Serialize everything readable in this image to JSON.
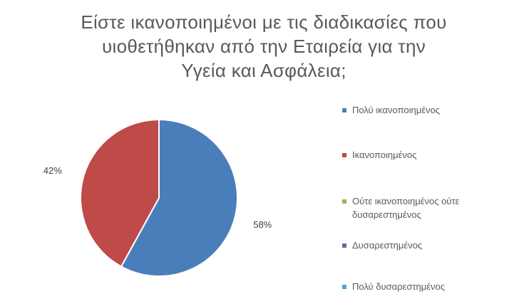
{
  "chart_data": {
    "type": "pie",
    "title_lines": [
      "Είστε ικανοποιημένοι με τις διαδικασίες που",
      "υιοθετήθηκαν από την Εταιρεία για την",
      "Υγεία και Ασφάλεια;"
    ],
    "categories": [
      "Πολύ ικανοποιημένος",
      "Ικανοποιημένος",
      "Ούτε ικανοποιημένος ούτε δυσαρεστημένος",
      "Δυσαρεστημένος",
      "Πολύ δυσαρεστημένος"
    ],
    "legend_lines": [
      [
        "Πολύ ικανοποιημένος"
      ],
      [
        "Ικανοποιημένος"
      ],
      [
        "Ούτε ικανοποιημένος ούτε",
        "δυσαρεστημένος"
      ],
      [
        "Δυσαρεστημένος"
      ],
      [
        "Πολύ δυσαρεστημένος"
      ]
    ],
    "values": [
      58,
      42,
      0,
      0,
      0
    ],
    "data_labels": [
      "58%",
      "42%",
      "",
      "",
      ""
    ],
    "colors": [
      "#4a7ebb",
      "#be4b48",
      "#98b954",
      "#7d60a0",
      "#46aac5"
    ],
    "legend_position": "right"
  }
}
